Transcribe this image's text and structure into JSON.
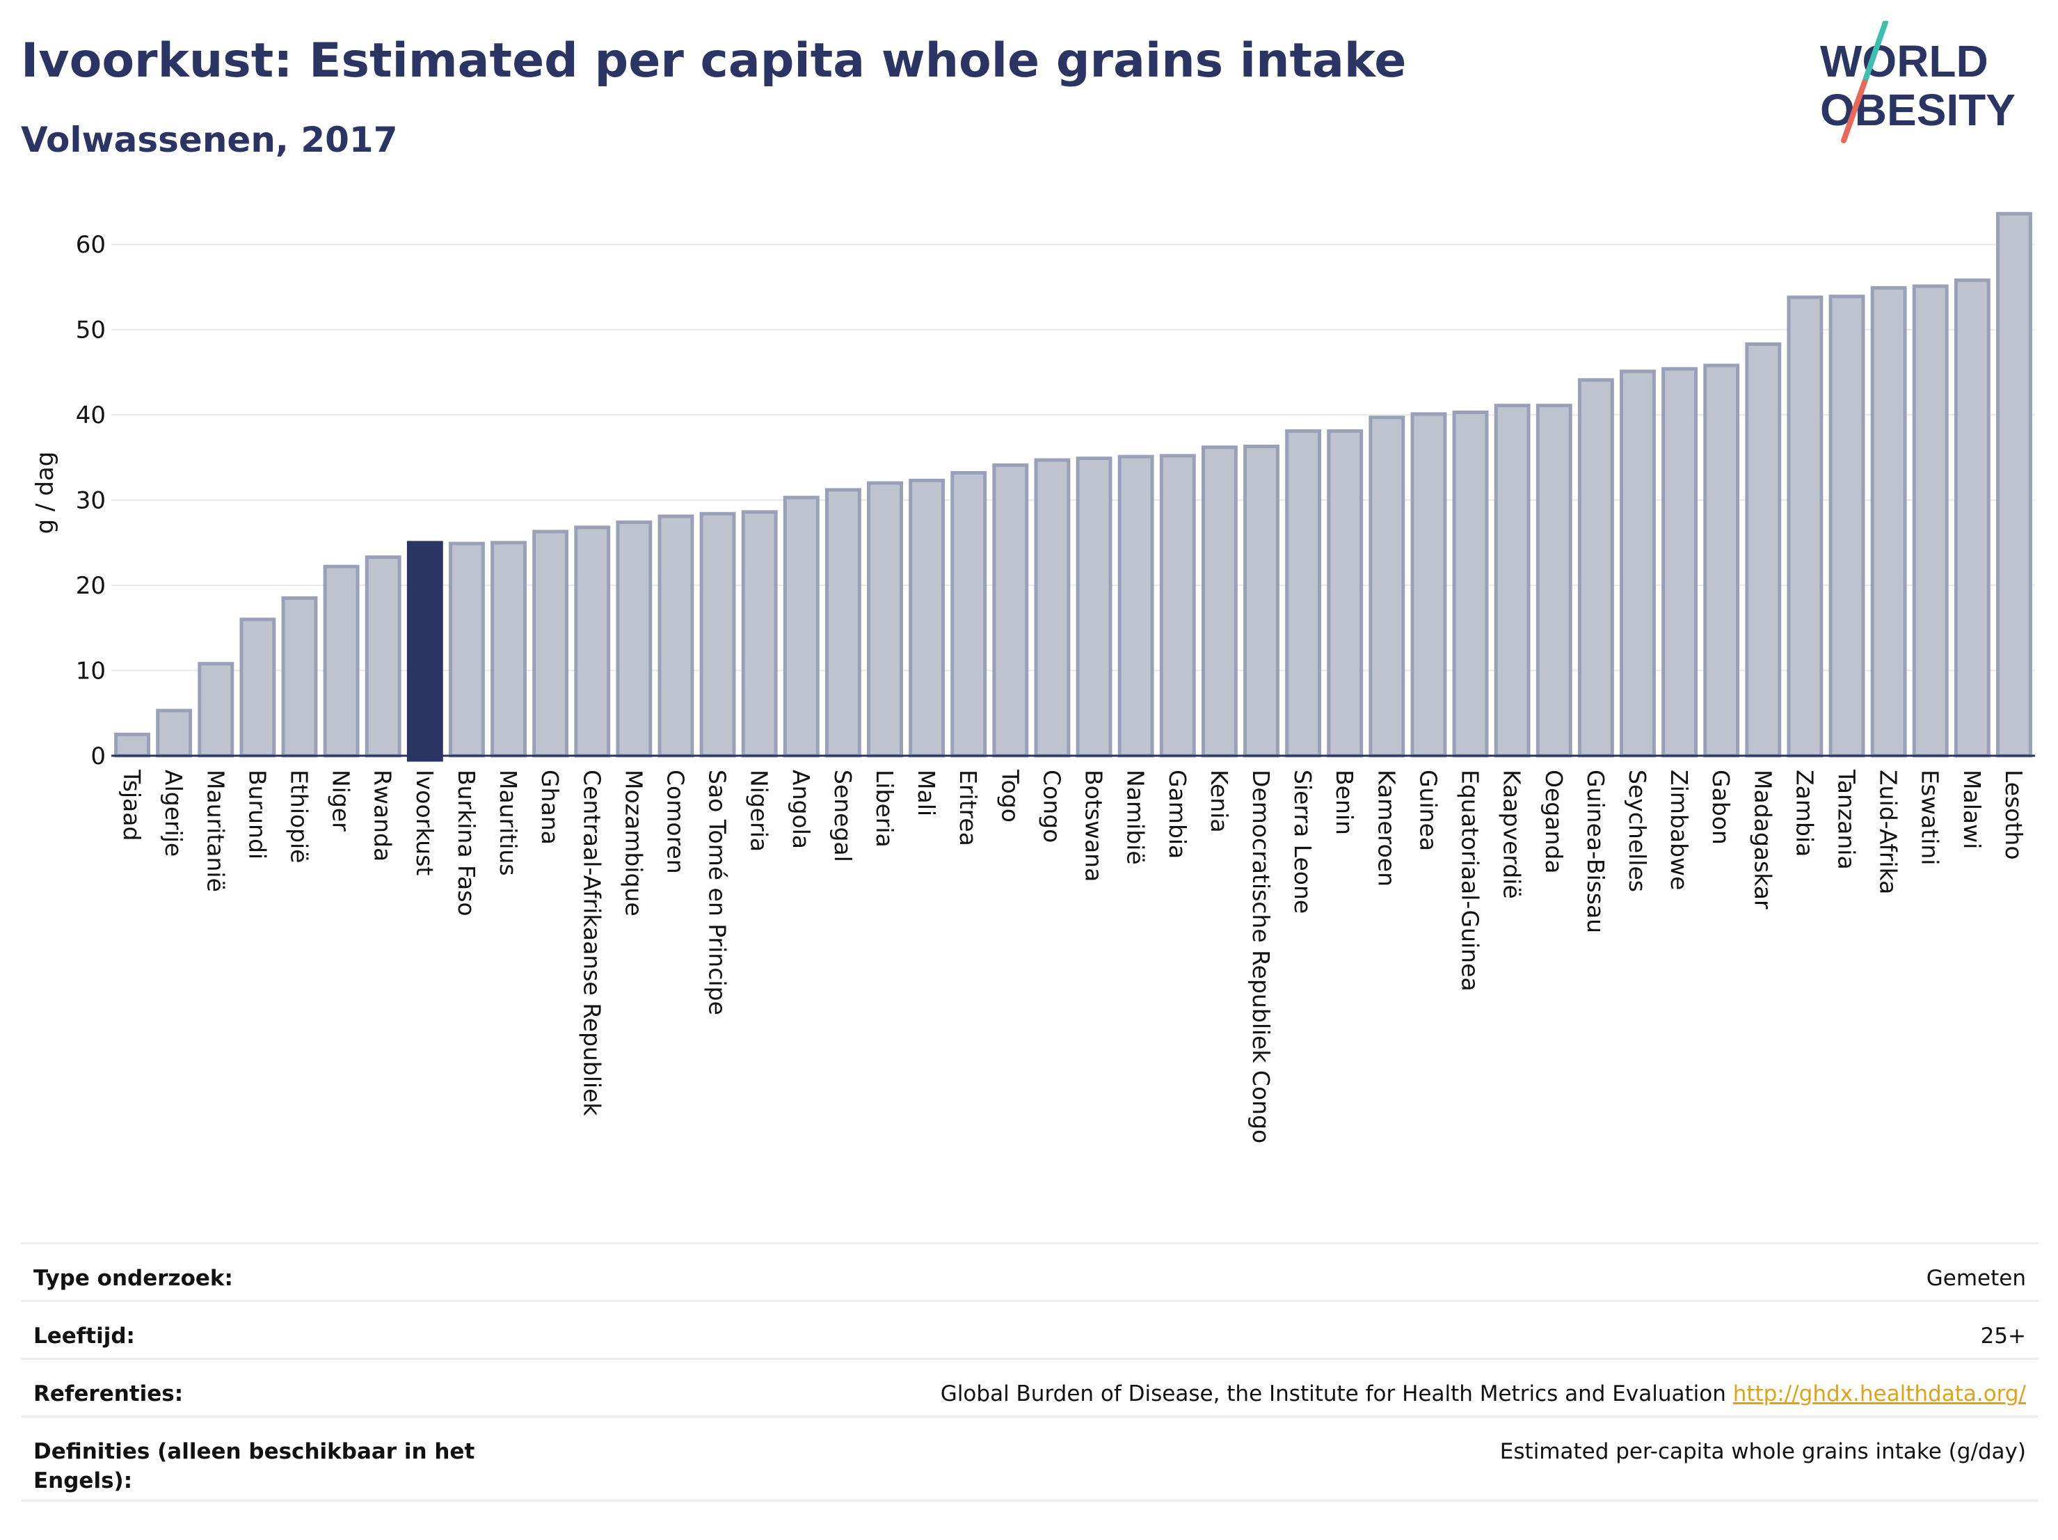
{
  "title": "Ivoorkust: Estimated per capita whole grains intake",
  "subtitle": "Volwassenen, 2017",
  "logo": {
    "text_line1": "WORLD",
    "text_line2": "OBESITY"
  },
  "colors": {
    "highlight": "#2a3564",
    "bar": "#bfc3d0",
    "bar_edge": "#9aa0b8",
    "grid": "#e6e8ee",
    "accent_teal": "#3dbfb0",
    "accent_red": "#e8685a"
  },
  "chart_data": {
    "type": "bar",
    "ylabel": "g / dag",
    "ylim": [
      0,
      65
    ],
    "yticks": [
      0,
      10,
      20,
      30,
      40,
      50,
      60
    ],
    "highlight": "Ivoorkust",
    "categories": [
      "Tsjaad",
      "Algerije",
      "Mauritanië",
      "Burundi",
      "Ethiopië",
      "Niger",
      "Rwanda",
      "Ivoorkust",
      "Burkina Faso",
      "Mauritius",
      "Ghana",
      "Centraal-Afrikaanse Republiek",
      "Mozambique",
      "Comoren",
      "Sao Tomé en Principe",
      "Nigeria",
      "Angola",
      "Senegal",
      "Liberia",
      "Mali",
      "Eritrea",
      "Togo",
      "Congo",
      "Botswana",
      "Namibië",
      "Gambia",
      "Kenia",
      "Democratische Republiek Congo",
      "Sierra Leone",
      "Benin",
      "Kameroen",
      "Guinea",
      "Equatoriaal-Guinea",
      "Kaapverdië",
      "Oeganda",
      "Guinea-Bissau",
      "Seychelles",
      "Zimbabwe",
      "Gabon",
      "Madagaskar",
      "Zambia",
      "Tanzania",
      "Zuid-Afrika",
      "Eswatini",
      "Malawi",
      "Lesotho"
    ],
    "values": [
      2.5,
      5.3,
      10.8,
      16.0,
      18.5,
      22.2,
      23.3,
      25.0,
      24.9,
      25.0,
      26.3,
      26.8,
      27.4,
      28.1,
      28.4,
      28.6,
      30.3,
      31.2,
      32.0,
      32.3,
      33.2,
      34.1,
      34.7,
      34.9,
      35.1,
      35.2,
      36.2,
      36.3,
      38.1,
      38.1,
      39.7,
      40.1,
      40.3,
      41.1,
      41.1,
      44.1,
      45.1,
      45.4,
      45.8,
      48.3,
      53.8,
      53.9,
      54.9,
      55.1,
      55.8,
      63.6
    ]
  },
  "meta": {
    "rows": [
      {
        "label": "Type onderzoek:",
        "value": "Gemeten"
      },
      {
        "label": "Leeftijd:",
        "value": "25+"
      },
      {
        "label": "Referenties:",
        "value": "Global Burden of Disease, the Institute for Health Metrics and Evaluation",
        "link": "http://ghdx.healthdata.org/"
      },
      {
        "label": "Definities (alleen beschikbaar in het Engels):",
        "value": "Estimated per-capita whole grains intake (g/day)"
      }
    ]
  }
}
